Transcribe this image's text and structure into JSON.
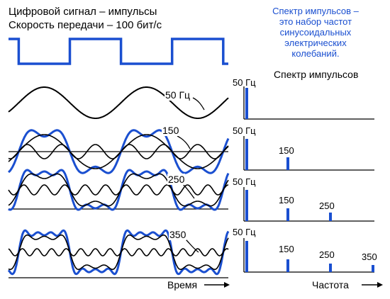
{
  "header": {
    "line1": "Цифровой сигнал –  импульсы",
    "line2": "Скорость передачи – 100 бит/с"
  },
  "note": {
    "lines": [
      "Спектр импульсов –",
      "это набор частот",
      "синусоидальных",
      "электрических",
      "колебаний."
    ]
  },
  "spectrum_title": "Спектр импульсов",
  "wave_labels": {
    "w50": "50 Гц",
    "w150": "150",
    "w250": "250",
    "w350": "350"
  },
  "spectrum_rows": [
    {
      "peaks": [
        {
          "label": "50 Гц"
        }
      ]
    },
    {
      "peaks": [
        {
          "label": "50 Гц"
        },
        {
          "label": "150"
        }
      ]
    },
    {
      "peaks": [
        {
          "label": "50 Гц"
        },
        {
          "label": "150"
        },
        {
          "label": "250"
        }
      ]
    },
    {
      "peaks": [
        {
          "label": "50 Гц"
        },
        {
          "label": "150"
        },
        {
          "label": "250"
        },
        {
          "label": "350"
        }
      ]
    }
  ],
  "axis_labels": {
    "time": "Время",
    "frequency": "Частота"
  },
  "colors": {
    "accent": "#1a4fd0",
    "ink": "#000000"
  }
}
